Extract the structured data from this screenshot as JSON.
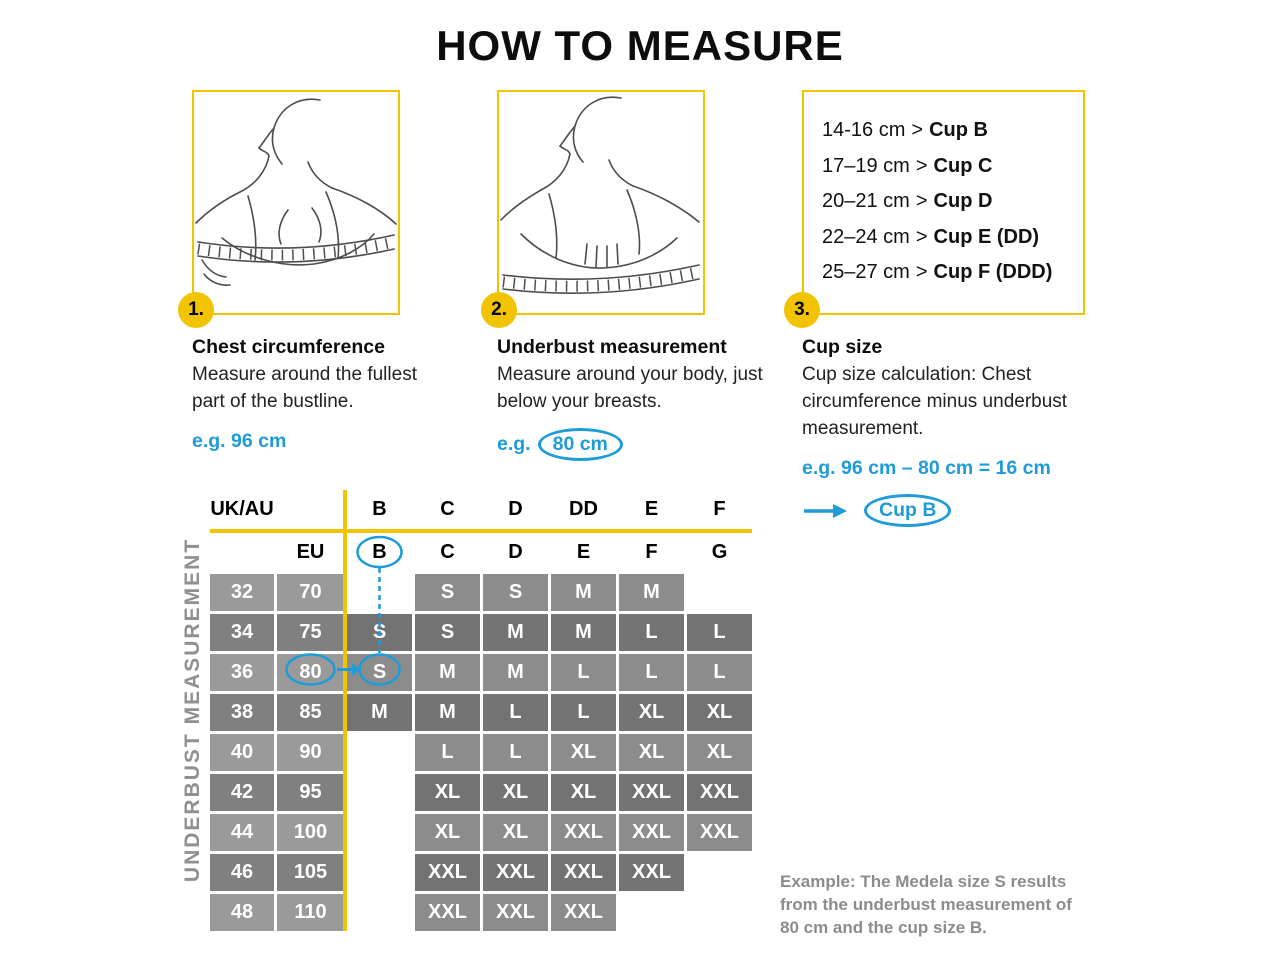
{
  "title": "HOW TO MEASURE",
  "colors": {
    "yellow": "#F2C300",
    "blue": "#1E9CD8",
    "table_light": "#9A9A9A",
    "table_dark": "#737373"
  },
  "steps": [
    {
      "number": "1.",
      "heading": "Chest circumference",
      "body": "Measure around the fullest part of the bustline.",
      "example_prefix": "e.g. 96 cm"
    },
    {
      "number": "2.",
      "heading": "Underbust measurement",
      "body": "Measure around your body, just below your breasts.",
      "example_prefix": "e.g.",
      "example_circled": "80 cm"
    },
    {
      "number": "3.",
      "heading": "Cup size",
      "body": "Cup size calculation: Chest circumference minus underbust measurement.",
      "example_prefix": "e.g. 96 cm – 80 cm = 16 cm",
      "result_circled": "Cup B"
    }
  ],
  "cup_separator": ">",
  "cup_chart": [
    {
      "range": "14-16 cm",
      "cup": "Cup B"
    },
    {
      "range": "17–19 cm",
      "cup": "Cup C"
    },
    {
      "range": "20–21 cm",
      "cup": "Cup D"
    },
    {
      "range": "22–24 cm",
      "cup": "Cup E (DD)"
    },
    {
      "range": "25–27 cm",
      "cup": "Cup F (DDD)"
    }
  ],
  "size_table": {
    "side_label": "UNDERBUST MEASUREMENT",
    "row1_label": "UK/AU",
    "row2_label": "EU",
    "cup_columns_ukau": [
      "B",
      "C",
      "D",
      "DD",
      "E",
      "F"
    ],
    "cup_columns_eu": [
      "B",
      "C",
      "D",
      "E",
      "F",
      "G"
    ],
    "rows": [
      {
        "ukau": "32",
        "eu": "70",
        "cells": [
          "",
          "S",
          "S",
          "M",
          "M",
          ""
        ]
      },
      {
        "ukau": "34",
        "eu": "75",
        "cells": [
          "S",
          "S",
          "M",
          "M",
          "L",
          "L"
        ]
      },
      {
        "ukau": "36",
        "eu": "80",
        "cells": [
          "S",
          "M",
          "M",
          "L",
          "L",
          "L"
        ]
      },
      {
        "ukau": "38",
        "eu": "85",
        "cells": [
          "M",
          "M",
          "L",
          "L",
          "XL",
          "XL"
        ]
      },
      {
        "ukau": "40",
        "eu": "90",
        "cells": [
          "",
          "L",
          "L",
          "XL",
          "XL",
          "XL"
        ]
      },
      {
        "ukau": "42",
        "eu": "95",
        "cells": [
          "",
          "XL",
          "XL",
          "XL",
          "XXL",
          "XXL"
        ]
      },
      {
        "ukau": "44",
        "eu": "100",
        "cells": [
          "",
          "XL",
          "XL",
          "XXL",
          "XXL",
          "XXL"
        ]
      },
      {
        "ukau": "46",
        "eu": "105",
        "cells": [
          "",
          "XXL",
          "XXL",
          "XXL",
          "XXL",
          ""
        ]
      },
      {
        "ukau": "48",
        "eu": "110",
        "cells": [
          "",
          "XXL",
          "XXL",
          "XXL",
          "",
          ""
        ]
      }
    ]
  },
  "example_note": "Example: The Medela size S results from the underbust measurement of 80 cm and the cup size B."
}
